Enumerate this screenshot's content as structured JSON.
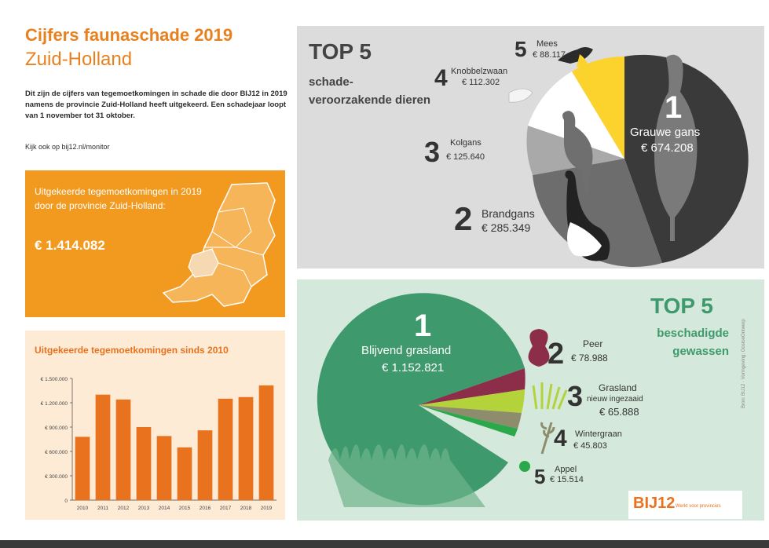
{
  "header": {
    "title_line1": "Cijfers faunaschade 2019",
    "title_line2": "Zuid-Holland",
    "intro": "Dit zijn de cijfers van tegemoetkomingen in schade die door BIJ12 in 2019 namens de provincie Zuid-Holland heeft uitgekeerd. Een schadejaar loopt van 1 november tot 31 oktober.",
    "link": "Kijk ook op bij12.nl/monitor"
  },
  "orange_panel": {
    "text": "Uitgekeerde tegemoetkomingen in 2019 door de provincie Zuid-Holland:",
    "amount": "€ 1.414.082",
    "color": "#f29a1f"
  },
  "bar_panel": {
    "title": "Uitgekeerde tegemoetkomingen sinds 2010"
  },
  "chart_data": {
    "type": "bar",
    "categories": [
      "2010",
      "2011",
      "2012",
      "2013",
      "2014",
      "2015",
      "2016",
      "2017",
      "2018",
      "2019"
    ],
    "values": [
      780000,
      1300000,
      1240000,
      900000,
      790000,
      650000,
      860000,
      1250000,
      1270000,
      1414082
    ],
    "yticks": [
      "0",
      "€ 300.000",
      "€ 600.000",
      "€ 900.000",
      "€ 1.200.000",
      "€ 1.500.000"
    ],
    "ylim": [
      0,
      1500000
    ],
    "color": "#e8721e"
  },
  "animals": {
    "top": "TOP 5",
    "subtitle": "schade-veroorzakende dieren",
    "items": [
      {
        "rank": "1",
        "name": "Grauwe gans",
        "amount": "€ 674.208",
        "color": "#3a3a3a"
      },
      {
        "rank": "2",
        "name": "Brandgans",
        "amount": "€ 285.349",
        "color": "#6d6d6d"
      },
      {
        "rank": "3",
        "name": "Kolgans",
        "amount": "€ 125.640",
        "color": "#a9a9a9"
      },
      {
        "rank": "4",
        "name": "Knobbelzwaan",
        "amount": "€ 112.302",
        "color": "#ffffff"
      },
      {
        "rank": "5",
        "name": "Mees",
        "amount": "€ 88.117",
        "color": "#fcd22c"
      }
    ]
  },
  "crops": {
    "top": "TOP 5",
    "subtitle": "beschadigde gewassen",
    "items": [
      {
        "rank": "1",
        "name": "Blijvend grasland",
        "amount": "€ 1.152.821",
        "color": "#3e9a6c"
      },
      {
        "rank": "2",
        "name": "Peer",
        "amount": "€ 78.988",
        "color": "#8c2d4a"
      },
      {
        "rank": "3",
        "name": "Grasland",
        "name2": "nieuw ingezaaid",
        "amount": "€ 65.888",
        "color": "#b4d23a"
      },
      {
        "rank": "4",
        "name": "Wintergraan",
        "amount": "€ 45.803",
        "color": "#8d8d6e"
      },
      {
        "rank": "5",
        "name": "Appel",
        "amount": "€ 15.514",
        "color": "#2aa84a"
      }
    ]
  },
  "footer": {
    "logo": "BIJ12",
    "logo_sub": "12",
    "tagline": "Werkt voor provincies",
    "side_text": "Bron: BIJ12 · Vormgeving: OostonOntwerp"
  }
}
